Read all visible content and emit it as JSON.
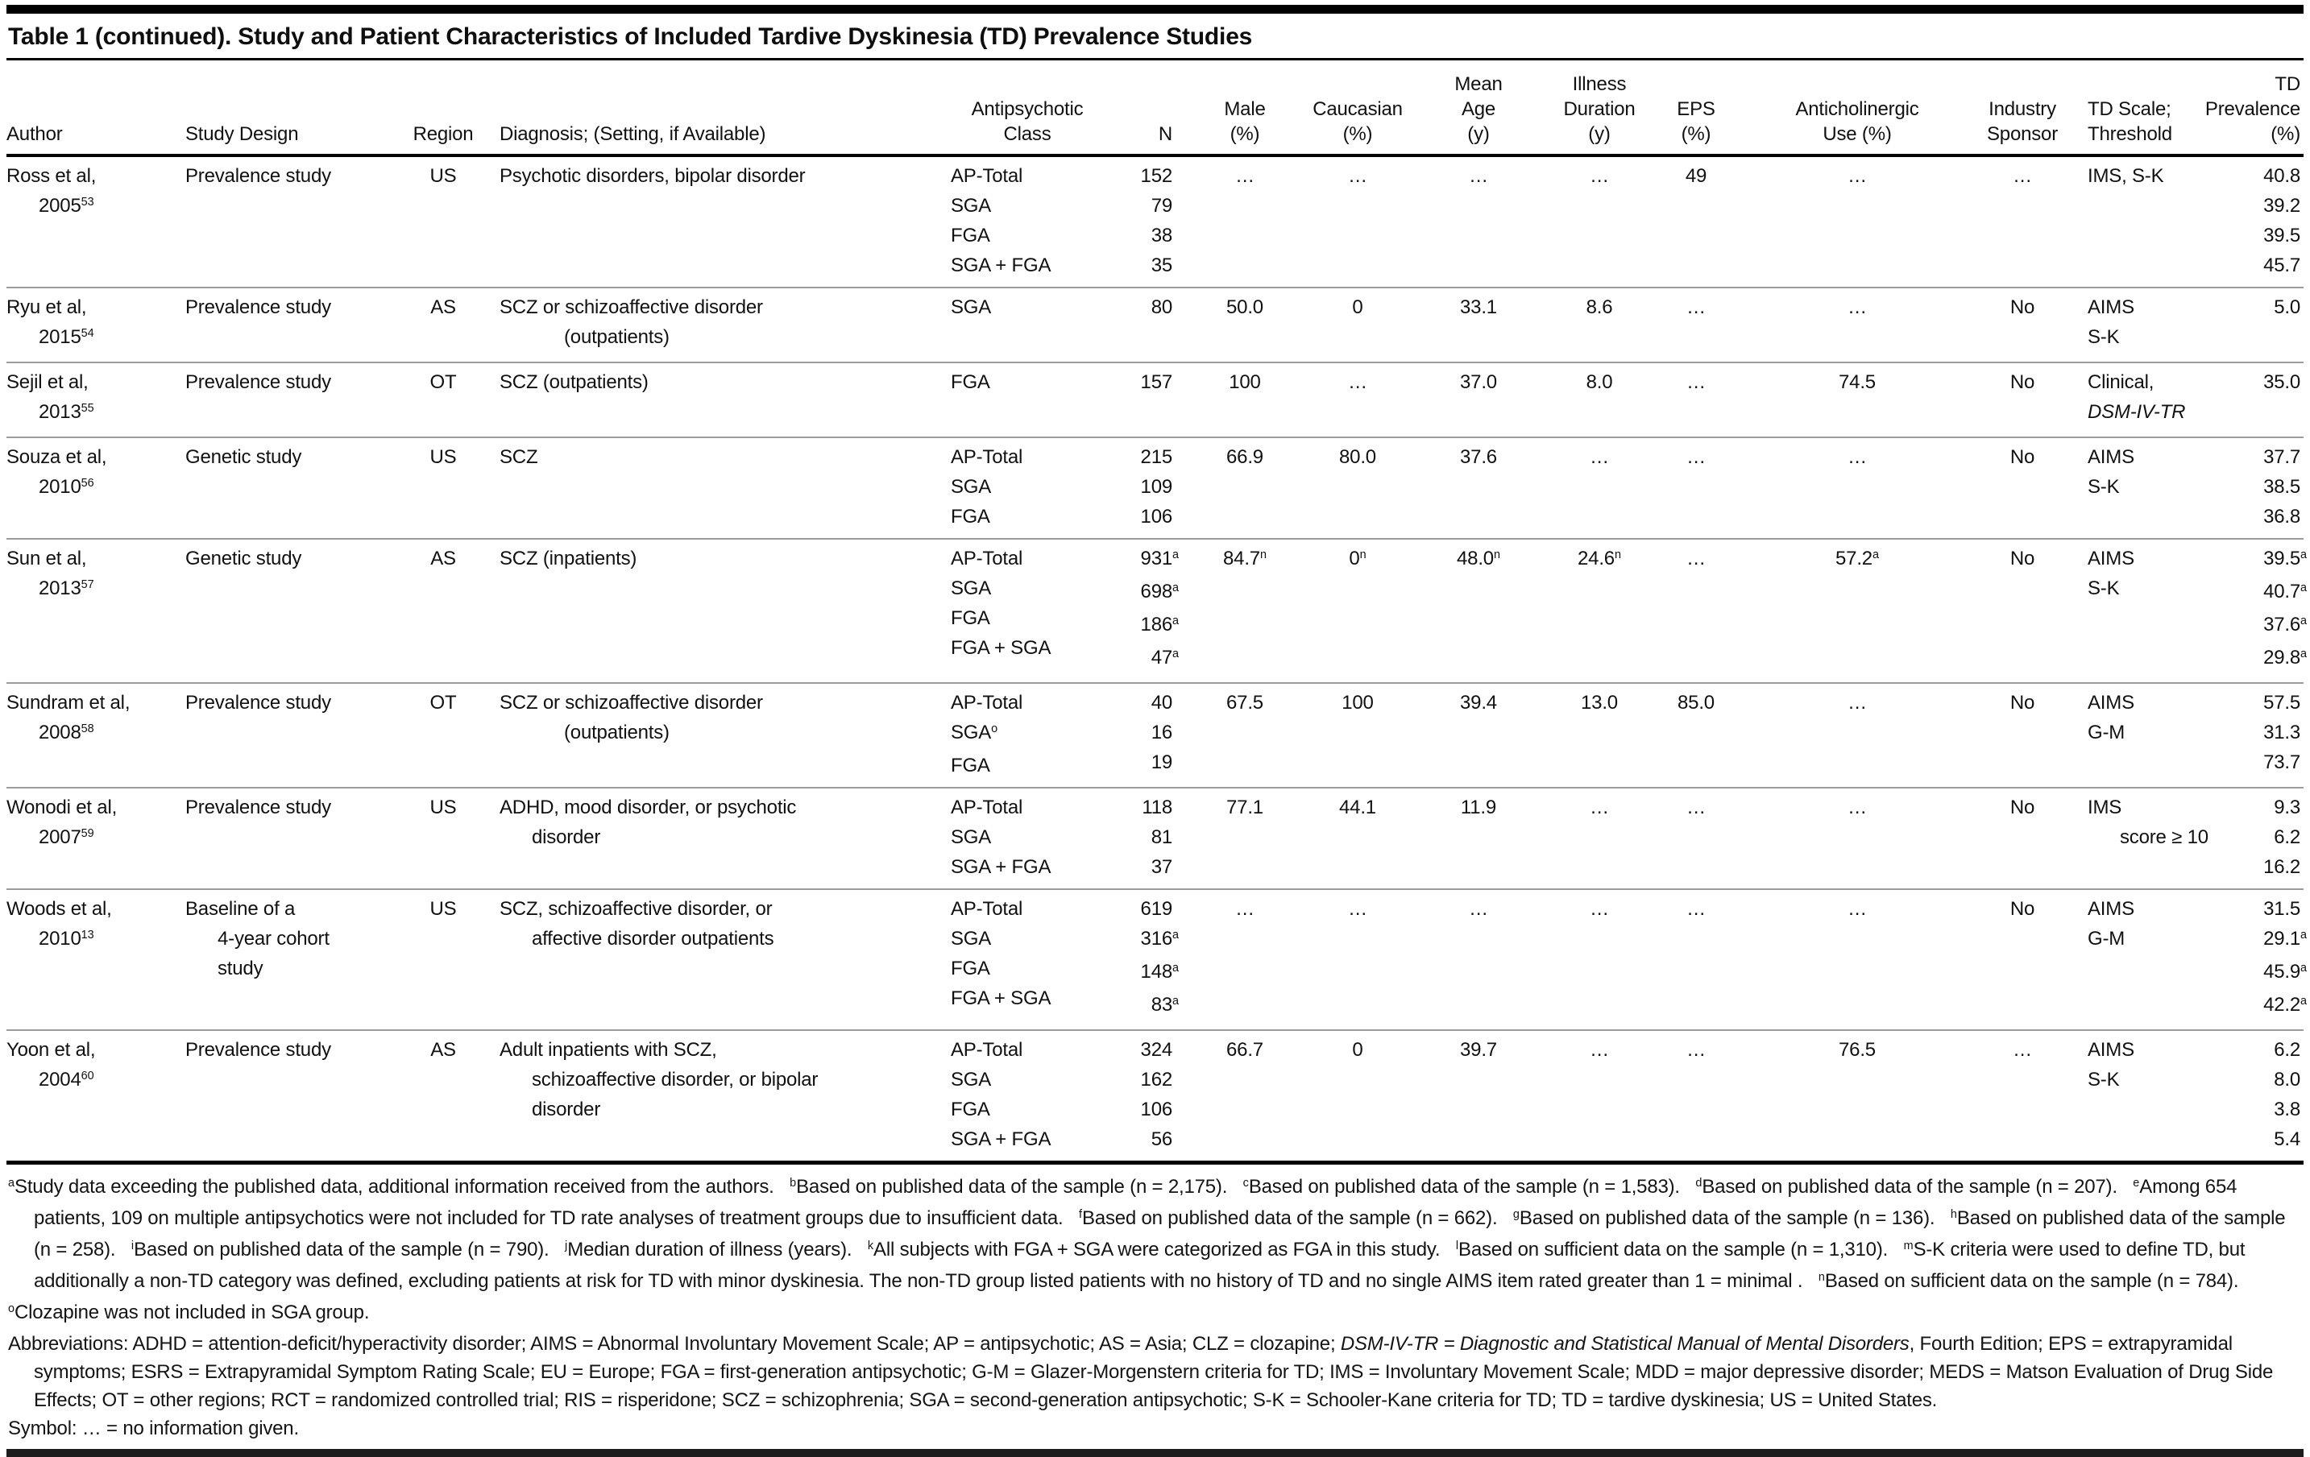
{
  "title": "Table 1 (continued). Study and Patient Characteristics of Included Tardive Dyskinesia (TD) Prevalence Studies",
  "colors": {
    "page_bg": "#ffffff",
    "text": "#111111",
    "rule": "#000000",
    "row_divider": "#9c9c9c"
  },
  "table": {
    "columns": [
      {
        "key": "author",
        "lines": [
          "Author"
        ]
      },
      {
        "key": "design",
        "lines": [
          "Study Design"
        ]
      },
      {
        "key": "region",
        "lines": [
          "Region"
        ]
      },
      {
        "key": "diagnosis",
        "lines": [
          "Diagnosis; (Setting, if Available)"
        ]
      },
      {
        "key": "ap",
        "lines": [
          "Antipsychotic",
          "Class"
        ]
      },
      {
        "key": "n",
        "lines": [
          "N"
        ]
      },
      {
        "key": "male",
        "lines": [
          "Male",
          "(%)"
        ]
      },
      {
        "key": "caucasian",
        "lines": [
          "Caucasian",
          "(%)"
        ]
      },
      {
        "key": "age",
        "lines": [
          "Mean",
          "Age",
          "(y)"
        ]
      },
      {
        "key": "duration",
        "lines": [
          "Illness",
          "Duration",
          "(y)"
        ]
      },
      {
        "key": "eps",
        "lines": [
          "EPS",
          "(%)"
        ]
      },
      {
        "key": "antichol",
        "lines": [
          "Anticholinergic",
          "Use (%)"
        ]
      },
      {
        "key": "sponsor",
        "lines": [
          "Industry",
          "Sponsor"
        ]
      },
      {
        "key": "scale",
        "lines": [
          "TD Scale;",
          "Threshold"
        ]
      },
      {
        "key": "prevalence",
        "lines": [
          "TD",
          "Prevalence",
          "(%)"
        ]
      }
    ],
    "rows": [
      {
        "author": [
          "Ross et al,",
          {
            "t": "2005^53",
            "ind": 1
          }
        ],
        "design": [
          "Prevalence study"
        ],
        "region": "US",
        "diagnosis": [
          "Psychotic disorders, bipolar disorder"
        ],
        "ap": [
          "AP-Total",
          "SGA",
          "FGA",
          "SGA + FGA"
        ],
        "n": [
          "152",
          "79",
          "38",
          "35"
        ],
        "male": "…",
        "caucasian": "…",
        "age": "…",
        "duration": "…",
        "eps": "49",
        "antichol": "…",
        "sponsor": "…",
        "scale": [
          "IMS, S-K"
        ],
        "prevalence": [
          "40.8",
          "39.2",
          "39.5",
          "45.7"
        ]
      },
      {
        "author": [
          "Ryu et al,",
          {
            "t": "2015^54",
            "ind": 1
          }
        ],
        "design": [
          "Prevalence study"
        ],
        "region": "AS",
        "diagnosis": [
          "SCZ or schizoaffective disorder",
          {
            "t": "(outpatients)",
            "ind": 2
          }
        ],
        "ap": [
          "SGA"
        ],
        "n": [
          "80"
        ],
        "male": "50.0",
        "caucasian": "0",
        "age": "33.1",
        "duration": "8.6",
        "eps": "…",
        "antichol": "…",
        "sponsor": "No",
        "scale": [
          "AIMS",
          "S-K"
        ],
        "prevalence": [
          "5.0"
        ]
      },
      {
        "author": [
          "Sejil et al,",
          {
            "t": "2013^55",
            "ind": 1
          }
        ],
        "design": [
          "Prevalence study"
        ],
        "region": "OT",
        "diagnosis": [
          "SCZ (outpatients)"
        ],
        "ap": [
          "FGA"
        ],
        "n": [
          "157"
        ],
        "male": "100",
        "caucasian": "…",
        "age": "37.0",
        "duration": "8.0",
        "eps": "…",
        "antichol": "74.5",
        "sponsor": "No",
        "scale": [
          "Clinical,",
          {
            "t": "DSM-IV-TR",
            "i": true
          }
        ],
        "prevalence": [
          "35.0"
        ]
      },
      {
        "author": [
          "Souza et al,",
          {
            "t": "2010^56",
            "ind": 1
          }
        ],
        "design": [
          "Genetic study"
        ],
        "region": "US",
        "diagnosis": [
          "SCZ"
        ],
        "ap": [
          "AP-Total",
          "SGA",
          "FGA"
        ],
        "n": [
          "215",
          "109",
          "106"
        ],
        "male": "66.9",
        "caucasian": "80.0",
        "age": "37.6",
        "duration": "…",
        "eps": "…",
        "antichol": "…",
        "sponsor": "No",
        "scale": [
          "AIMS",
          "S-K"
        ],
        "prevalence": [
          "37.7",
          "38.5",
          "36.8"
        ]
      },
      {
        "author": [
          "Sun et al,",
          {
            "t": "2013^57",
            "ind": 1
          }
        ],
        "design": [
          "Genetic study"
        ],
        "region": "AS",
        "diagnosis": [
          "SCZ (inpatients)"
        ],
        "ap": [
          "AP-Total",
          "SGA",
          "FGA",
          "FGA + SGA"
        ],
        "n": [
          "931^a",
          "698^a",
          "186^a",
          "47^a"
        ],
        "male": "84.7^n",
        "caucasian": "0^n",
        "age": "48.0^n",
        "duration": "24.6^n",
        "eps": "…",
        "antichol": "57.2^a",
        "sponsor": "No",
        "scale": [
          "AIMS",
          "S-K"
        ],
        "prevalence": [
          "39.5^a",
          "40.7^a",
          "37.6^a",
          "29.8^a"
        ]
      },
      {
        "author": [
          "Sundram et al,",
          {
            "t": "2008^58",
            "ind": 1
          }
        ],
        "design": [
          "Prevalence study"
        ],
        "region": "OT",
        "diagnosis": [
          "SCZ or schizoaffective disorder",
          {
            "t": "(outpatients)",
            "ind": 2
          }
        ],
        "ap": [
          "AP-Total",
          "SGA^o",
          "FGA"
        ],
        "n": [
          "40",
          "16",
          "19"
        ],
        "male": "67.5",
        "caucasian": "100",
        "age": "39.4",
        "duration": "13.0",
        "eps": "85.0",
        "antichol": "…",
        "sponsor": "No",
        "scale": [
          "AIMS",
          "G-M"
        ],
        "prevalence": [
          "57.5",
          "31.3",
          "73.7"
        ]
      },
      {
        "author": [
          "Wonodi et al,",
          {
            "t": "2007^59",
            "ind": 1
          }
        ],
        "design": [
          "Prevalence study"
        ],
        "region": "US",
        "diagnosis": [
          "ADHD, mood disorder, or psychotic",
          {
            "t": "disorder",
            "ind": 1
          }
        ],
        "ap": [
          "AP-Total",
          "SGA",
          "SGA + FGA"
        ],
        "n": [
          "118",
          "81",
          "37"
        ],
        "male": "77.1",
        "caucasian": "44.1",
        "age": "11.9",
        "duration": "…",
        "eps": "…",
        "antichol": "…",
        "sponsor": "No",
        "scale": [
          "IMS",
          {
            "t": "score ≥ 10",
            "ind": 1
          }
        ],
        "prevalence": [
          "9.3",
          "6.2",
          "16.2"
        ]
      },
      {
        "author": [
          "Woods et al,",
          {
            "t": "2010^13",
            "ind": 1
          }
        ],
        "design": [
          "Baseline of a",
          {
            "t": "4-year cohort",
            "ind": 1
          },
          {
            "t": "study",
            "ind": 1
          }
        ],
        "region": "US",
        "diagnosis": [
          "SCZ, schizoaffective disorder, or",
          {
            "t": "affective disorder outpatients",
            "ind": 1
          }
        ],
        "ap": [
          "AP-Total",
          "SGA",
          "FGA",
          "FGA + SGA"
        ],
        "n": [
          "619",
          "316^a",
          "148^a",
          "83^a"
        ],
        "male": "…",
        "caucasian": "…",
        "age": "…",
        "duration": "…",
        "eps": "…",
        "antichol": "…",
        "sponsor": "No",
        "scale": [
          "AIMS",
          "G-M"
        ],
        "prevalence": [
          "31.5",
          "29.1^a",
          "45.9^a",
          "42.2^a"
        ]
      },
      {
        "author": [
          "Yoon et al,",
          {
            "t": "2004^60",
            "ind": 1
          }
        ],
        "design": [
          "Prevalence study"
        ],
        "region": "AS",
        "diagnosis": [
          "Adult inpatients with SCZ,",
          {
            "t": "schizoaffective disorder, or bipolar",
            "ind": 1
          },
          {
            "t": "disorder",
            "ind": 1
          }
        ],
        "ap": [
          "AP-Total",
          "SGA",
          "FGA",
          "SGA + FGA"
        ],
        "n": [
          "324",
          "162",
          "106",
          "56"
        ],
        "male": "66.7",
        "caucasian": "0",
        "age": "39.7",
        "duration": "…",
        "eps": "…",
        "antichol": "76.5",
        "sponsor": "…",
        "scale": [
          "AIMS",
          "S-K"
        ],
        "prevalence": [
          "6.2",
          "8.0",
          "3.8",
          "5.4"
        ]
      }
    ]
  },
  "footnotes": {
    "items": [
      {
        "sup": "a",
        "text": "Study data exceeding the published data, additional information received from the authors."
      },
      {
        "sup": "b",
        "text": "Based on published data of the sample (n = 2,175)."
      },
      {
        "sup": "c",
        "text": "Based on published data of the sample (n = 1,583)."
      },
      {
        "sup": "d",
        "text": "Based on published data of the sample (n = 207)."
      },
      {
        "sup": "e",
        "text": "Among 654 patients, 109 on multiple antipsychotics were not included for TD rate analyses of treatment groups due to insufficient data."
      },
      {
        "sup": "f",
        "text": "Based on published data of the sample (n = 662)."
      },
      {
        "sup": "g",
        "text": "Based on published data of the sample (n = 136)."
      },
      {
        "sup": "h",
        "text": "Based on published data of the sample (n = 258)."
      },
      {
        "sup": "i",
        "text": "Based on published data of the sample (n = 790)."
      },
      {
        "sup": "j",
        "text": "Median duration of illness (years)."
      },
      {
        "sup": "k",
        "text": "All subjects with FGA + SGA were categorized as FGA in this study."
      },
      {
        "sup": "l",
        "text": "Based on sufficient data on the sample (n = 1,310)."
      },
      {
        "sup": "m",
        "text": "S-K criteria were used to define TD, but additionally a non-TD category was defined, excluding patients at risk for TD with minor dyskinesia. The non-TD group listed patients with no history of TD and no single AIMS item rated greater than 1 = minimal ."
      },
      {
        "sup": "n",
        "text": "Based on sufficient data on the sample (n = 784)."
      }
    ],
    "clozapine_note": {
      "sup": "o",
      "text": "Clozapine was not included in SGA group."
    }
  },
  "abbreviations": {
    "segments": [
      {
        "text": "Abbreviations: ADHD = attention-deficit/hyperactivity disorder; AIMS = Abnormal Involuntary Movement Scale; AP = antipsychotic; AS = Asia; CLZ = clozapine; "
      },
      {
        "text": "DSM-IV-TR = Diagnostic and Statistical Manual of Mental Disorders",
        "italic": true
      },
      {
        "text": ", Fourth Edition; EPS = extrapyramidal symptoms; ESRS = Extrapyramidal Symptom Rating Scale; EU = Europe; FGA = first-generation antipsychotic; G-M = Glazer-Morgenstern criteria for TD; IMS = Involuntary Movement Scale; MDD = major depressive disorder; MEDS = Matson Evaluation of Drug Side Effects; OT = other regions; RCT = randomized controlled trial; RIS = risperidone; SCZ = schizophrenia; SGA = second-generation antipsychotic; S-K = Schooler-Kane criteria for TD; TD = tardive dyskinesia; US = United States."
      }
    ]
  },
  "symbol_note": "Symbol: … = no information given."
}
